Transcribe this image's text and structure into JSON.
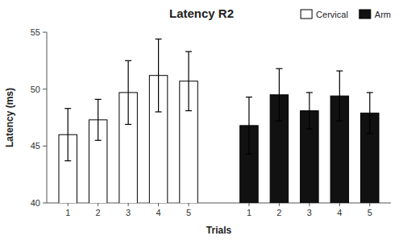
{
  "chart_data": {
    "type": "bar",
    "title": "Latency R2",
    "xlabel": "Trials",
    "ylabel": "Latency (ms)",
    "categories": [
      1,
      2,
      3,
      4,
      5
    ],
    "series": [
      {
        "name": "Cervical",
        "color": "#ffffff",
        "values": [
          46.0,
          47.3,
          49.7,
          51.2,
          50.7
        ],
        "errors": [
          2.3,
          1.8,
          2.8,
          3.2,
          2.6
        ]
      },
      {
        "name": "Arm",
        "color": "#111111",
        "values": [
          46.8,
          49.5,
          48.1,
          49.4,
          47.9
        ],
        "errors": [
          2.5,
          2.3,
          1.6,
          2.2,
          1.8
        ]
      }
    ],
    "ylim": [
      40,
      55
    ],
    "yticks": [
      40,
      45,
      50,
      55
    ],
    "legend": "upper right"
  }
}
